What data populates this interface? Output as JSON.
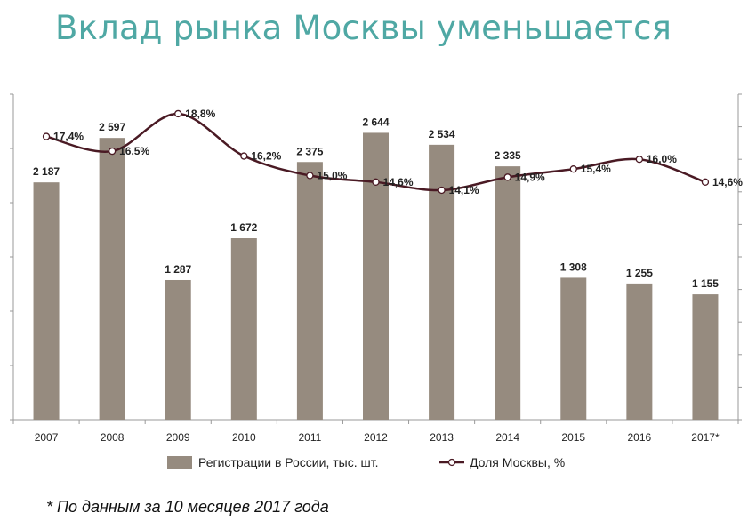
{
  "title": "Вклад рынка Москвы уменьшается",
  "footnote": "* По данным за 10 месяцев 2017 года",
  "colors": {
    "bar": "#968b7f",
    "line": "#4a1a24",
    "title": "#4fa8a4"
  },
  "chart_data": {
    "type": "bar",
    "categories": [
      "2007",
      "2008",
      "2009",
      "2010",
      "2011",
      "2012",
      "2013",
      "2014",
      "2015",
      "2016",
      "2017*"
    ],
    "series": [
      {
        "name": "Регистрации в России, тыс. шт.",
        "type": "bar",
        "axis": "left",
        "values": [
          2187,
          2597,
          1287,
          1672,
          2375,
          2644,
          2534,
          2335,
          1308,
          1255,
          1155
        ],
        "labels": [
          "2 187",
          "2 597",
          "1 287",
          "1 672",
          "2 375",
          "2 644",
          "2 534",
          "2 335",
          "1 308",
          "1 255",
          "1 155"
        ]
      },
      {
        "name": "Доля Москвы, %",
        "type": "line",
        "axis": "right",
        "values": [
          17.4,
          16.5,
          18.8,
          16.2,
          15.0,
          14.6,
          14.1,
          14.9,
          15.4,
          16.0,
          14.6
        ],
        "labels": [
          "17,4%",
          "16,5%",
          "18,8%",
          "16,2%",
          "15,0%",
          "14,6%",
          "14,1%",
          "14,9%",
          "15,4%",
          "16,0%",
          "14,6%"
        ]
      }
    ],
    "left_ylim": [
      0,
      3000
    ],
    "right_ylim": [
      0,
      20
    ],
    "legend": "bottom",
    "grid": false
  }
}
